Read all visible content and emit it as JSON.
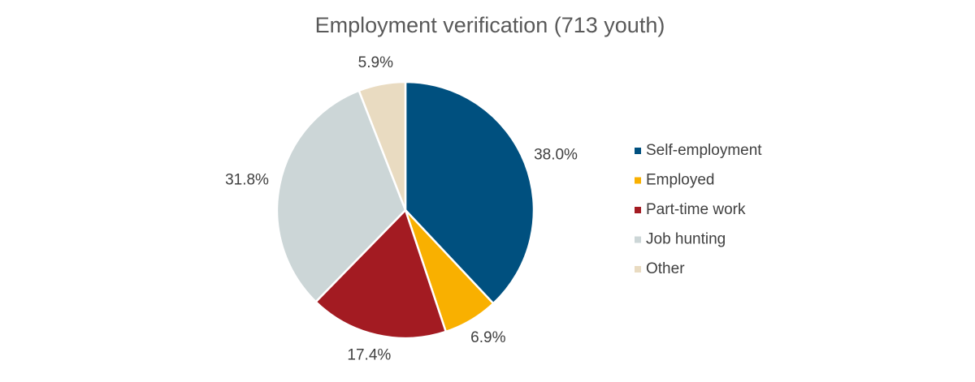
{
  "chart_data": {
    "type": "pie",
    "title": "Employment verification (713 youth)",
    "categories": [
      "Self-employment",
      "Employed",
      "Part-time work",
      "Job hunting",
      "Other"
    ],
    "values": [
      38.0,
      6.9,
      17.4,
      31.8,
      5.9
    ],
    "value_labels": [
      "38.0%",
      "6.9%",
      "17.4%",
      "31.8%",
      "5.9%"
    ],
    "colors": [
      "#00507f",
      "#f9b000",
      "#a31b22",
      "#ccd6d7",
      "#e9dbc1"
    ],
    "legend": "right"
  }
}
